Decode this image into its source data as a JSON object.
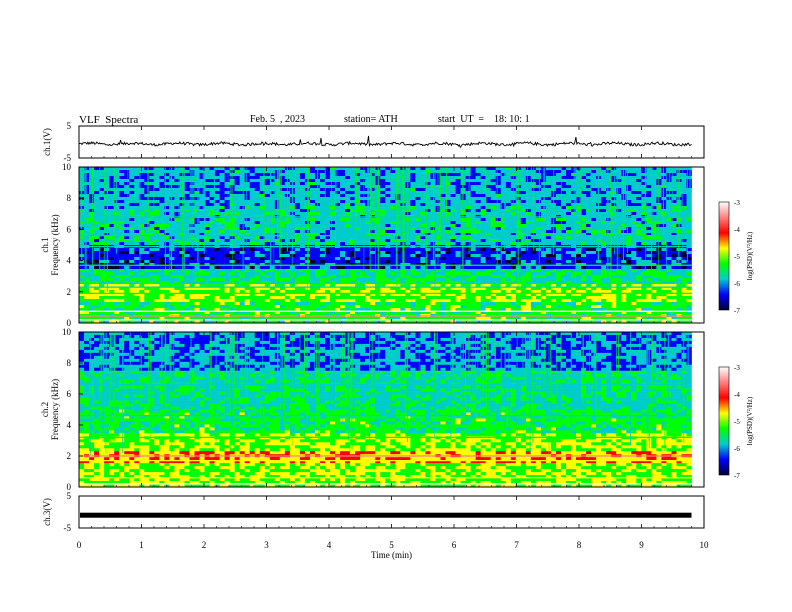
{
  "header": {
    "title": "VLF  Spectra",
    "date": "Feb. 5  , 2023",
    "station": "station= ATH",
    "start": "start  UT  =    18: 10: 1"
  },
  "colorbar": {
    "label": "log(PSD)(V²/Hz)",
    "ticks": [
      "-3",
      "-4",
      "-5",
      "-6",
      "-7"
    ],
    "colors": [
      "#ffffff",
      "#ff8080",
      "#ff0000",
      "#ffff00",
      "#00ff00",
      "#00cccc",
      "#0000ff",
      "#000033"
    ]
  },
  "chart_data": {
    "type": "spectrogram",
    "x": {
      "label": "Time  (min)",
      "range": [
        0,
        10
      ],
      "ticks": [
        "0",
        "1",
        "2",
        "3",
        "4",
        "5",
        "6",
        "7",
        "8",
        "9",
        "10"
      ]
    },
    "panels": [
      {
        "id": "ch1-time",
        "type": "line",
        "ylabel": "ch.1(V)",
        "yticks": [
          "5",
          "-5"
        ],
        "ylim": [
          -5,
          5
        ]
      },
      {
        "id": "ch1-spec",
        "type": "heatmap",
        "ylabel": "ch.1",
        "ylabel2": "Frequency  (kHz)",
        "yticks": [
          "10",
          "8",
          "6",
          "4",
          "2",
          "0"
        ],
        "ylim": [
          0,
          10
        ]
      },
      {
        "id": "ch2-spec",
        "type": "heatmap",
        "ylabel": "ch.2",
        "ylabel2": "Frequency  (kHz)",
        "yticks": [
          "10",
          "8",
          "6",
          "4",
          "2",
          "0"
        ],
        "ylim": [
          0,
          10
        ]
      },
      {
        "id": "ch3-time",
        "type": "line",
        "ylabel": "ch.3(V)",
        "yticks": [
          "5",
          "-5"
        ],
        "ylim": [
          -5,
          5
        ],
        "constant_value": -1
      }
    ],
    "data_end_min": 9.8
  }
}
